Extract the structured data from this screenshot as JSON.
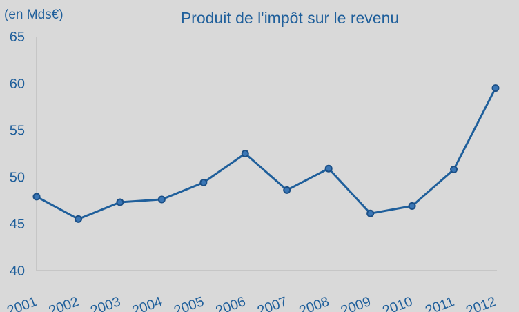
{
  "chart_data": {
    "type": "line",
    "title": "Produit de l'impôt sur le revenu",
    "ylabel": "(en Mds€)",
    "xlabel": "",
    "categories": [
      "2001",
      "2002",
      "2003",
      "2004",
      "2005",
      "2006",
      "2007",
      "2008",
      "2009",
      "2010",
      "2011",
      "2012"
    ],
    "series": [
      {
        "values": [
          47.9,
          45.5,
          47.3,
          47.6,
          49.4,
          52.5,
          48.6,
          50.9,
          46.1,
          46.9,
          50.8,
          59.5
        ]
      }
    ],
    "ylim": [
      40,
      65
    ],
    "yticks": [
      40,
      45,
      50,
      55,
      60,
      65
    ],
    "grid": false,
    "line_color": "#1f5f9b",
    "marker_color": "#3a76b5"
  }
}
